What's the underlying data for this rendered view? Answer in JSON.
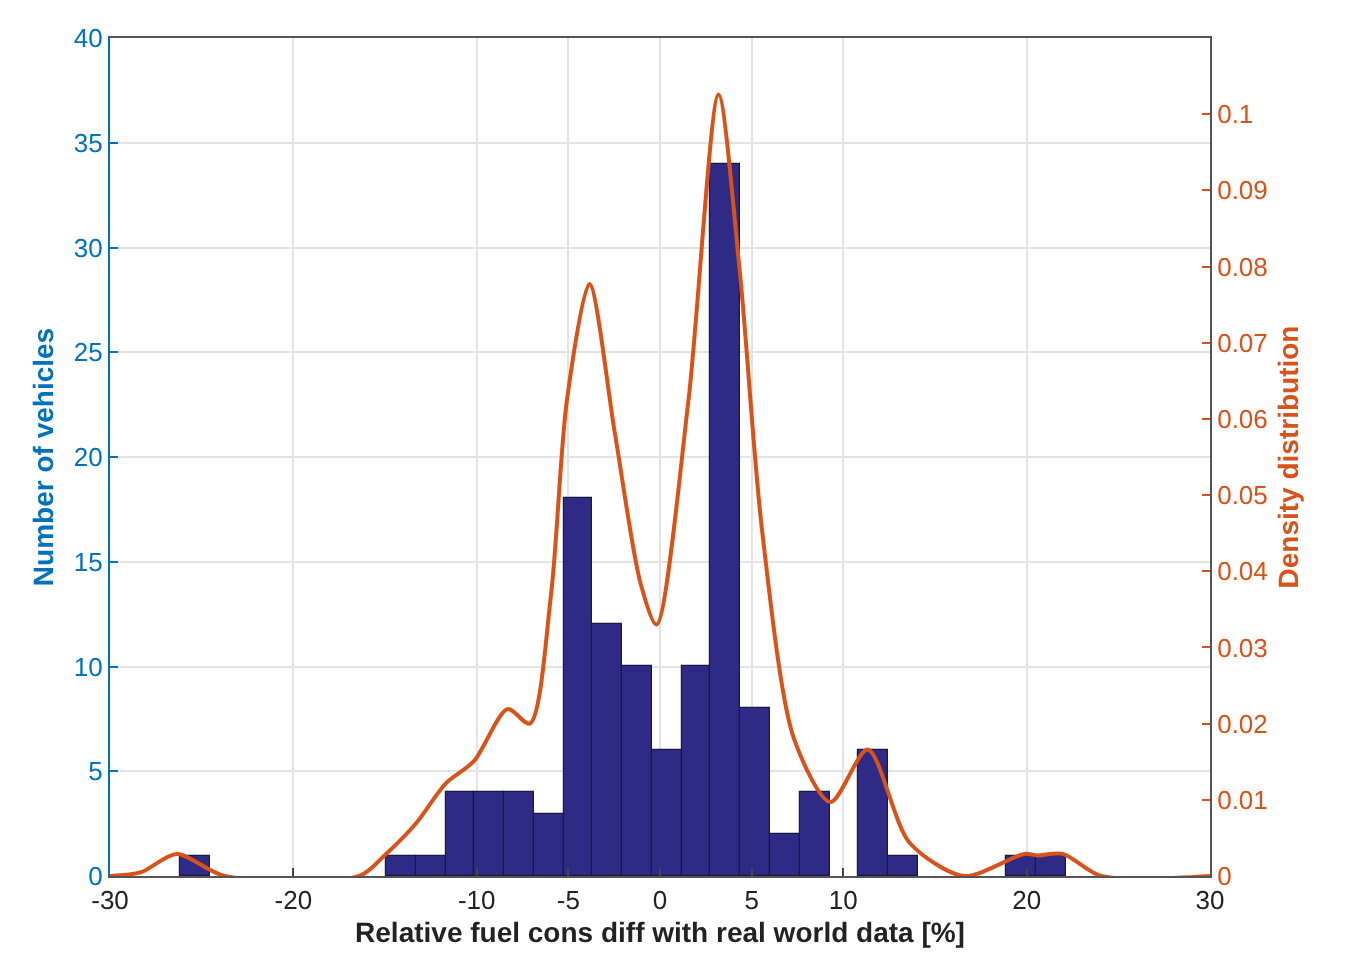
{
  "chart_data": {
    "type": "histogram",
    "xlabel": "Relative fuel cons diff with real world data [%]",
    "ylabel": "Number of vehicles",
    "y2label": "Density distribution",
    "bins": [
      -26.2,
      -24.59,
      -22.98,
      -21.37,
      -19.76,
      -18.15,
      -16.54,
      -14.93,
      -13.32,
      -11.71,
      -10.1,
      -8.49,
      -6.88,
      -5.27,
      -3.66,
      -2.05,
      -0.44,
      1.17,
      2.78,
      4.39,
      6.0,
      7.61,
      9.22,
      10.83,
      12.44,
      14.05,
      15.66,
      17.27,
      18.88,
      20.49,
      22.1
    ],
    "series": [
      {
        "color": "#2e2a86",
        "values": [
          1,
          0,
          0,
          0,
          0,
          0,
          0,
          1,
          1,
          4,
          4,
          4,
          3,
          18,
          12,
          10,
          6,
          10,
          34,
          8,
          2,
          4,
          0,
          6,
          1,
          0,
          0,
          0,
          1,
          1
        ]
      },
      {
        "type": "line",
        "axis": "y2",
        "color": "#d95319",
        "x": [
          -30,
          -28.3,
          -26.37,
          -23.75,
          -16.4,
          -15.03,
          -13.28,
          -11.71,
          -10.14,
          -8.32,
          -7.1,
          -5.95,
          -5.08,
          -3.85,
          -2.46,
          -1.07,
          -0.19,
          1.55,
          3.19,
          4.35,
          5.57,
          7.31,
          9.3,
          11.33,
          13.6,
          16.57,
          19.88,
          20.58,
          21.97,
          24.06,
          30
        ],
        "values": [
          0,
          0.0005,
          0.0029,
          0,
          0,
          0.0027,
          0.007,
          0.0121,
          0.0151,
          0.0219,
          0.02,
          0.0368,
          0.0624,
          0.0777,
          0.0581,
          0.0385,
          0.033,
          0.0624,
          0.1026,
          0.0794,
          0.0453,
          0.018,
          0.0097,
          0.0166,
          0.0044,
          0,
          0.0029,
          0.0027,
          0.0029,
          0,
          0
        ]
      }
    ],
    "xlim": [
      -30,
      30
    ],
    "xticks": [
      -30,
      -20,
      -10,
      -5,
      0,
      5,
      10,
      20,
      30
    ],
    "ylim": [
      0,
      40
    ],
    "yticks": [
      0,
      5,
      10,
      15,
      20,
      25,
      30,
      35,
      40
    ],
    "y2lim": [
      0,
      0.11
    ],
    "y2ticks": [
      0,
      0.01,
      0.02,
      0.03,
      0.04,
      0.05,
      0.06,
      0.07,
      0.08,
      0.09,
      0.1
    ],
    "grid": true
  }
}
